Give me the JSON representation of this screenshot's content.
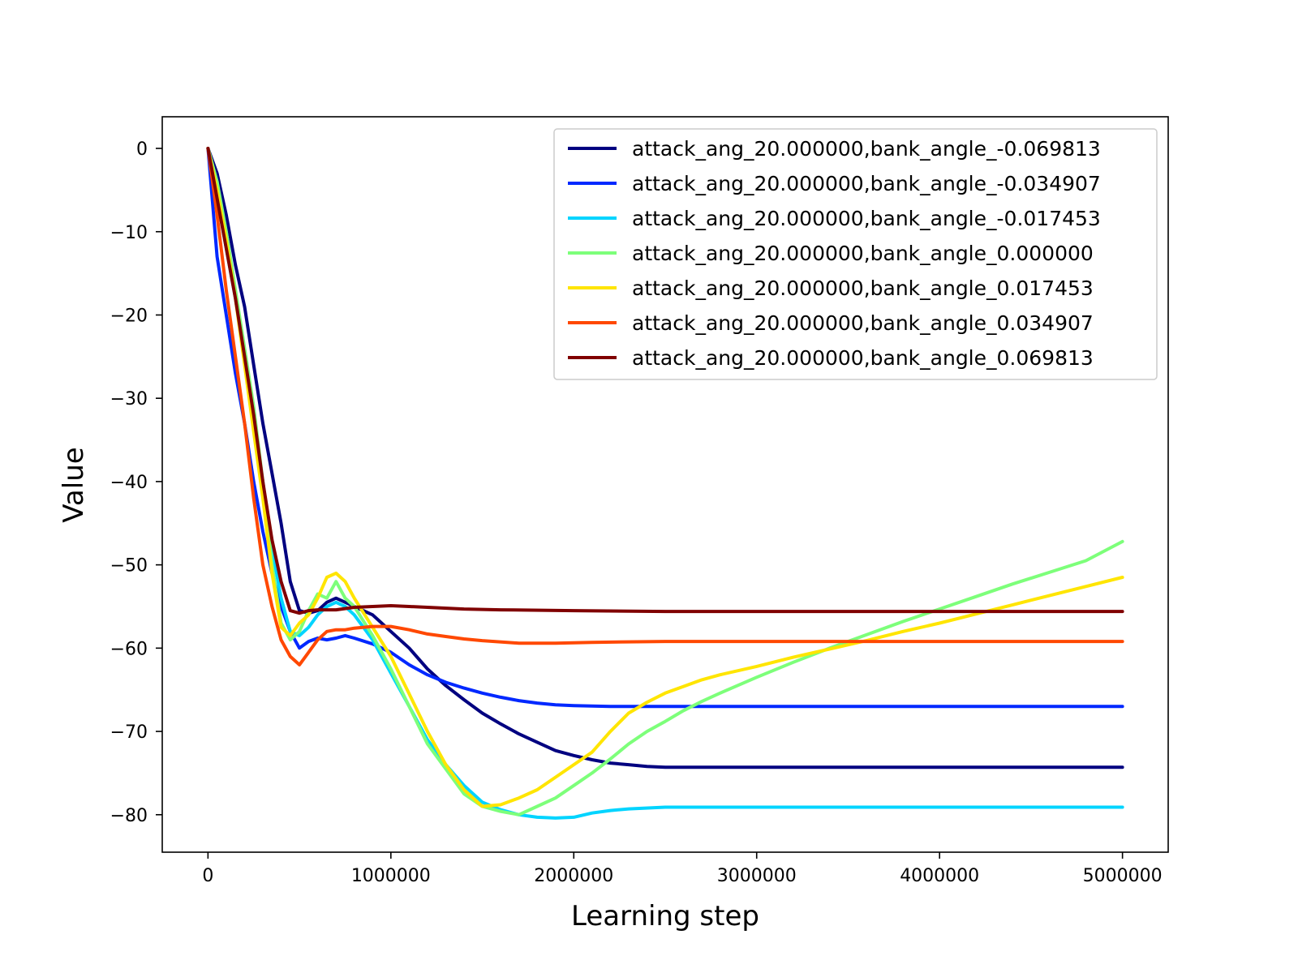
{
  "chart_data": {
    "type": "line",
    "xlabel": "Learning step",
    "ylabel": "Value",
    "xlim": [
      -250000,
      5250000
    ],
    "ylim": [
      -84.5,
      3.8
    ],
    "xticks": [
      0,
      1000000,
      2000000,
      3000000,
      4000000,
      5000000
    ],
    "xtick_labels": [
      "0",
      "1000000",
      "2000000",
      "3000000",
      "4000000",
      "5000000"
    ],
    "yticks": [
      0,
      -10,
      -20,
      -30,
      -40,
      -50,
      -60,
      -70,
      -80
    ],
    "ytick_labels": [
      "0",
      "−10",
      "−20",
      "−30",
      "−40",
      "−50",
      "−60",
      "−70",
      "−80"
    ],
    "legend_position": "top-right",
    "grid": false,
    "series": [
      {
        "name": "attack_ang_20.000000,bank_angle_-0.069813",
        "color": "#000080",
        "points": [
          [
            0,
            0
          ],
          [
            50000,
            -3
          ],
          [
            100000,
            -8
          ],
          [
            150000,
            -14
          ],
          [
            200000,
            -19
          ],
          [
            250000,
            -26
          ],
          [
            300000,
            -33
          ],
          [
            350000,
            -39
          ],
          [
            400000,
            -45
          ],
          [
            450000,
            -52
          ],
          [
            500000,
            -55.5
          ],
          [
            550000,
            -55.8
          ],
          [
            600000,
            -55.5
          ],
          [
            650000,
            -54.5
          ],
          [
            700000,
            -54
          ],
          [
            750000,
            -54.5
          ],
          [
            800000,
            -55
          ],
          [
            900000,
            -56
          ],
          [
            1000000,
            -58
          ],
          [
            1100000,
            -60
          ],
          [
            1200000,
            -62.5
          ],
          [
            1300000,
            -64.5
          ],
          [
            1400000,
            -66.2
          ],
          [
            1500000,
            -67.8
          ],
          [
            1600000,
            -69.1
          ],
          [
            1700000,
            -70.3
          ],
          [
            1800000,
            -71.3
          ],
          [
            1900000,
            -72.3
          ],
          [
            2000000,
            -72.9
          ],
          [
            2100000,
            -73.4
          ],
          [
            2200000,
            -73.8
          ],
          [
            2300000,
            -74.0
          ],
          [
            2400000,
            -74.2
          ],
          [
            2500000,
            -74.3
          ],
          [
            2750000,
            -74.3
          ],
          [
            3000000,
            -74.3
          ],
          [
            3500000,
            -74.3
          ],
          [
            4000000,
            -74.3
          ],
          [
            4500000,
            -74.3
          ],
          [
            5000000,
            -74.3
          ]
        ]
      },
      {
        "name": "attack_ang_20.000000,bank_angle_-0.034907",
        "color": "#0028ff",
        "points": [
          [
            0,
            0
          ],
          [
            50000,
            -13
          ],
          [
            100000,
            -20
          ],
          [
            150000,
            -27
          ],
          [
            200000,
            -33
          ],
          [
            250000,
            -40
          ],
          [
            300000,
            -46
          ],
          [
            350000,
            -51
          ],
          [
            400000,
            -55
          ],
          [
            450000,
            -58
          ],
          [
            500000,
            -60
          ],
          [
            550000,
            -59.2
          ],
          [
            600000,
            -58.8
          ],
          [
            650000,
            -59
          ],
          [
            700000,
            -58.8
          ],
          [
            750000,
            -58.5
          ],
          [
            800000,
            -58.8
          ],
          [
            900000,
            -59.5
          ],
          [
            1000000,
            -60.5
          ],
          [
            1100000,
            -62
          ],
          [
            1200000,
            -63.2
          ],
          [
            1300000,
            -64.1
          ],
          [
            1400000,
            -64.8
          ],
          [
            1500000,
            -65.4
          ],
          [
            1600000,
            -65.9
          ],
          [
            1700000,
            -66.3
          ],
          [
            1800000,
            -66.6
          ],
          [
            1900000,
            -66.8
          ],
          [
            2000000,
            -66.9
          ],
          [
            2200000,
            -67
          ],
          [
            2500000,
            -67
          ],
          [
            3000000,
            -67
          ],
          [
            4000000,
            -67
          ],
          [
            5000000,
            -67
          ]
        ]
      },
      {
        "name": "attack_ang_20.000000,bank_angle_-0.017453",
        "color": "#00d4ff",
        "points": [
          [
            0,
            0
          ],
          [
            50000,
            -6
          ],
          [
            100000,
            -12
          ],
          [
            150000,
            -18
          ],
          [
            200000,
            -25
          ],
          [
            250000,
            -33
          ],
          [
            300000,
            -40
          ],
          [
            350000,
            -48
          ],
          [
            400000,
            -54
          ],
          [
            450000,
            -58
          ],
          [
            500000,
            -58.5
          ],
          [
            550000,
            -57.5
          ],
          [
            600000,
            -56
          ],
          [
            650000,
            -55
          ],
          [
            700000,
            -54.5
          ],
          [
            750000,
            -55
          ],
          [
            800000,
            -56
          ],
          [
            900000,
            -59
          ],
          [
            1000000,
            -63
          ],
          [
            1100000,
            -67
          ],
          [
            1200000,
            -71
          ],
          [
            1300000,
            -74
          ],
          [
            1400000,
            -76.5
          ],
          [
            1500000,
            -78.5
          ],
          [
            1600000,
            -79.4
          ],
          [
            1700000,
            -80
          ],
          [
            1800000,
            -80.3
          ],
          [
            1900000,
            -80.4
          ],
          [
            2000000,
            -80.3
          ],
          [
            2100000,
            -79.8
          ],
          [
            2200000,
            -79.5
          ],
          [
            2300000,
            -79.3
          ],
          [
            2500000,
            -79.1
          ],
          [
            3000000,
            -79.1
          ],
          [
            4000000,
            -79.1
          ],
          [
            5000000,
            -79.1
          ]
        ]
      },
      {
        "name": "attack_ang_20.000000,bank_angle_0.000000",
        "color": "#7dff7a",
        "points": [
          [
            0,
            0
          ],
          [
            50000,
            -4
          ],
          [
            100000,
            -10
          ],
          [
            150000,
            -17
          ],
          [
            200000,
            -24
          ],
          [
            250000,
            -31
          ],
          [
            300000,
            -40
          ],
          [
            350000,
            -50
          ],
          [
            400000,
            -57
          ],
          [
            450000,
            -59
          ],
          [
            500000,
            -58
          ],
          [
            550000,
            -55.5
          ],
          [
            600000,
            -53.5
          ],
          [
            650000,
            -54
          ],
          [
            700000,
            -52
          ],
          [
            750000,
            -54
          ],
          [
            800000,
            -55
          ],
          [
            900000,
            -58.5
          ],
          [
            1000000,
            -62.5
          ],
          [
            1100000,
            -67
          ],
          [
            1200000,
            -71.5
          ],
          [
            1300000,
            -74.5
          ],
          [
            1400000,
            -77.5
          ],
          [
            1500000,
            -79
          ],
          [
            1600000,
            -79.6
          ],
          [
            1700000,
            -80
          ],
          [
            1800000,
            -79
          ],
          [
            1900000,
            -78
          ],
          [
            2000000,
            -76.5
          ],
          [
            2100000,
            -75
          ],
          [
            2200000,
            -73.3
          ],
          [
            2300000,
            -71.5
          ],
          [
            2400000,
            -70
          ],
          [
            2500000,
            -68.8
          ],
          [
            2600000,
            -67.5
          ],
          [
            2700000,
            -66.4
          ],
          [
            2800000,
            -65.4
          ],
          [
            3000000,
            -63.5
          ],
          [
            3200000,
            -61.7
          ],
          [
            3400000,
            -60
          ],
          [
            3600000,
            -58.4
          ],
          [
            3800000,
            -56.8
          ],
          [
            4000000,
            -55.3
          ],
          [
            4200000,
            -53.8
          ],
          [
            4400000,
            -52.3
          ],
          [
            4600000,
            -50.9
          ],
          [
            4800000,
            -49.5
          ],
          [
            5000000,
            -47.2
          ]
        ]
      },
      {
        "name": "attack_ang_20.000000,bank_angle_0.017453",
        "color": "#ffe500",
        "points": [
          [
            0,
            0
          ],
          [
            50000,
            -5
          ],
          [
            100000,
            -11
          ],
          [
            150000,
            -18
          ],
          [
            200000,
            -26
          ],
          [
            250000,
            -34
          ],
          [
            300000,
            -42
          ],
          [
            350000,
            -51
          ],
          [
            400000,
            -57.5
          ],
          [
            450000,
            -58.5
          ],
          [
            500000,
            -57
          ],
          [
            550000,
            -56
          ],
          [
            600000,
            -54
          ],
          [
            650000,
            -51.5
          ],
          [
            700000,
            -51
          ],
          [
            750000,
            -52
          ],
          [
            800000,
            -54
          ],
          [
            900000,
            -57.5
          ],
          [
            1000000,
            -61
          ],
          [
            1100000,
            -65.5
          ],
          [
            1200000,
            -70
          ],
          [
            1300000,
            -74
          ],
          [
            1400000,
            -77
          ],
          [
            1500000,
            -79
          ],
          [
            1600000,
            -78.8
          ],
          [
            1700000,
            -78
          ],
          [
            1800000,
            -77
          ],
          [
            1900000,
            -75.5
          ],
          [
            2000000,
            -74
          ],
          [
            2100000,
            -72.5
          ],
          [
            2200000,
            -70
          ],
          [
            2300000,
            -67.8
          ],
          [
            2400000,
            -66.5
          ],
          [
            2500000,
            -65.4
          ],
          [
            2600000,
            -64.6
          ],
          [
            2700000,
            -63.8
          ],
          [
            2800000,
            -63.2
          ],
          [
            3000000,
            -62.2
          ],
          [
            3200000,
            -61.1
          ],
          [
            3400000,
            -60.1
          ],
          [
            3600000,
            -59.1
          ],
          [
            3800000,
            -58
          ],
          [
            4000000,
            -57
          ],
          [
            4200000,
            -55.9
          ],
          [
            4400000,
            -54.8
          ],
          [
            4600000,
            -53.7
          ],
          [
            4800000,
            -52.6
          ],
          [
            5000000,
            -51.5
          ]
        ]
      },
      {
        "name": "attack_ang_20.000000,bank_angle_0.034907",
        "color": "#ff4800",
        "points": [
          [
            0,
            0
          ],
          [
            50000,
            -8
          ],
          [
            100000,
            -17
          ],
          [
            150000,
            -25
          ],
          [
            200000,
            -33
          ],
          [
            250000,
            -42
          ],
          [
            300000,
            -50
          ],
          [
            350000,
            -55
          ],
          [
            400000,
            -59
          ],
          [
            450000,
            -61
          ],
          [
            500000,
            -62
          ],
          [
            550000,
            -60.5
          ],
          [
            600000,
            -59
          ],
          [
            650000,
            -58
          ],
          [
            700000,
            -57.8
          ],
          [
            750000,
            -57.8
          ],
          [
            800000,
            -57.6
          ],
          [
            900000,
            -57.4
          ],
          [
            1000000,
            -57.4
          ],
          [
            1100000,
            -57.8
          ],
          [
            1200000,
            -58.3
          ],
          [
            1300000,
            -58.6
          ],
          [
            1400000,
            -58.9
          ],
          [
            1500000,
            -59.1
          ],
          [
            1700000,
            -59.4
          ],
          [
            1900000,
            -59.4
          ],
          [
            2100000,
            -59.3
          ],
          [
            2500000,
            -59.2
          ],
          [
            3000000,
            -59.2
          ],
          [
            4000000,
            -59.2
          ],
          [
            5000000,
            -59.2
          ]
        ]
      },
      {
        "name": "attack_ang_20.000000,bank_angle_0.069813",
        "color": "#800000",
        "points": [
          [
            0,
            0
          ],
          [
            50000,
            -6
          ],
          [
            100000,
            -12
          ],
          [
            150000,
            -18
          ],
          [
            200000,
            -25
          ],
          [
            250000,
            -32
          ],
          [
            300000,
            -40
          ],
          [
            350000,
            -47
          ],
          [
            400000,
            -52
          ],
          [
            450000,
            -55.5
          ],
          [
            500000,
            -55.8
          ],
          [
            550000,
            -55.5
          ],
          [
            600000,
            -55.4
          ],
          [
            700000,
            -55.4
          ],
          [
            800000,
            -55.1
          ],
          [
            900000,
            -55
          ],
          [
            1000000,
            -54.9
          ],
          [
            1100000,
            -55
          ],
          [
            1200000,
            -55.1
          ],
          [
            1400000,
            -55.3
          ],
          [
            1600000,
            -55.4
          ],
          [
            2000000,
            -55.5
          ],
          [
            2500000,
            -55.6
          ],
          [
            3000000,
            -55.6
          ],
          [
            4000000,
            -55.6
          ],
          [
            5000000,
            -55.6
          ]
        ]
      }
    ]
  }
}
